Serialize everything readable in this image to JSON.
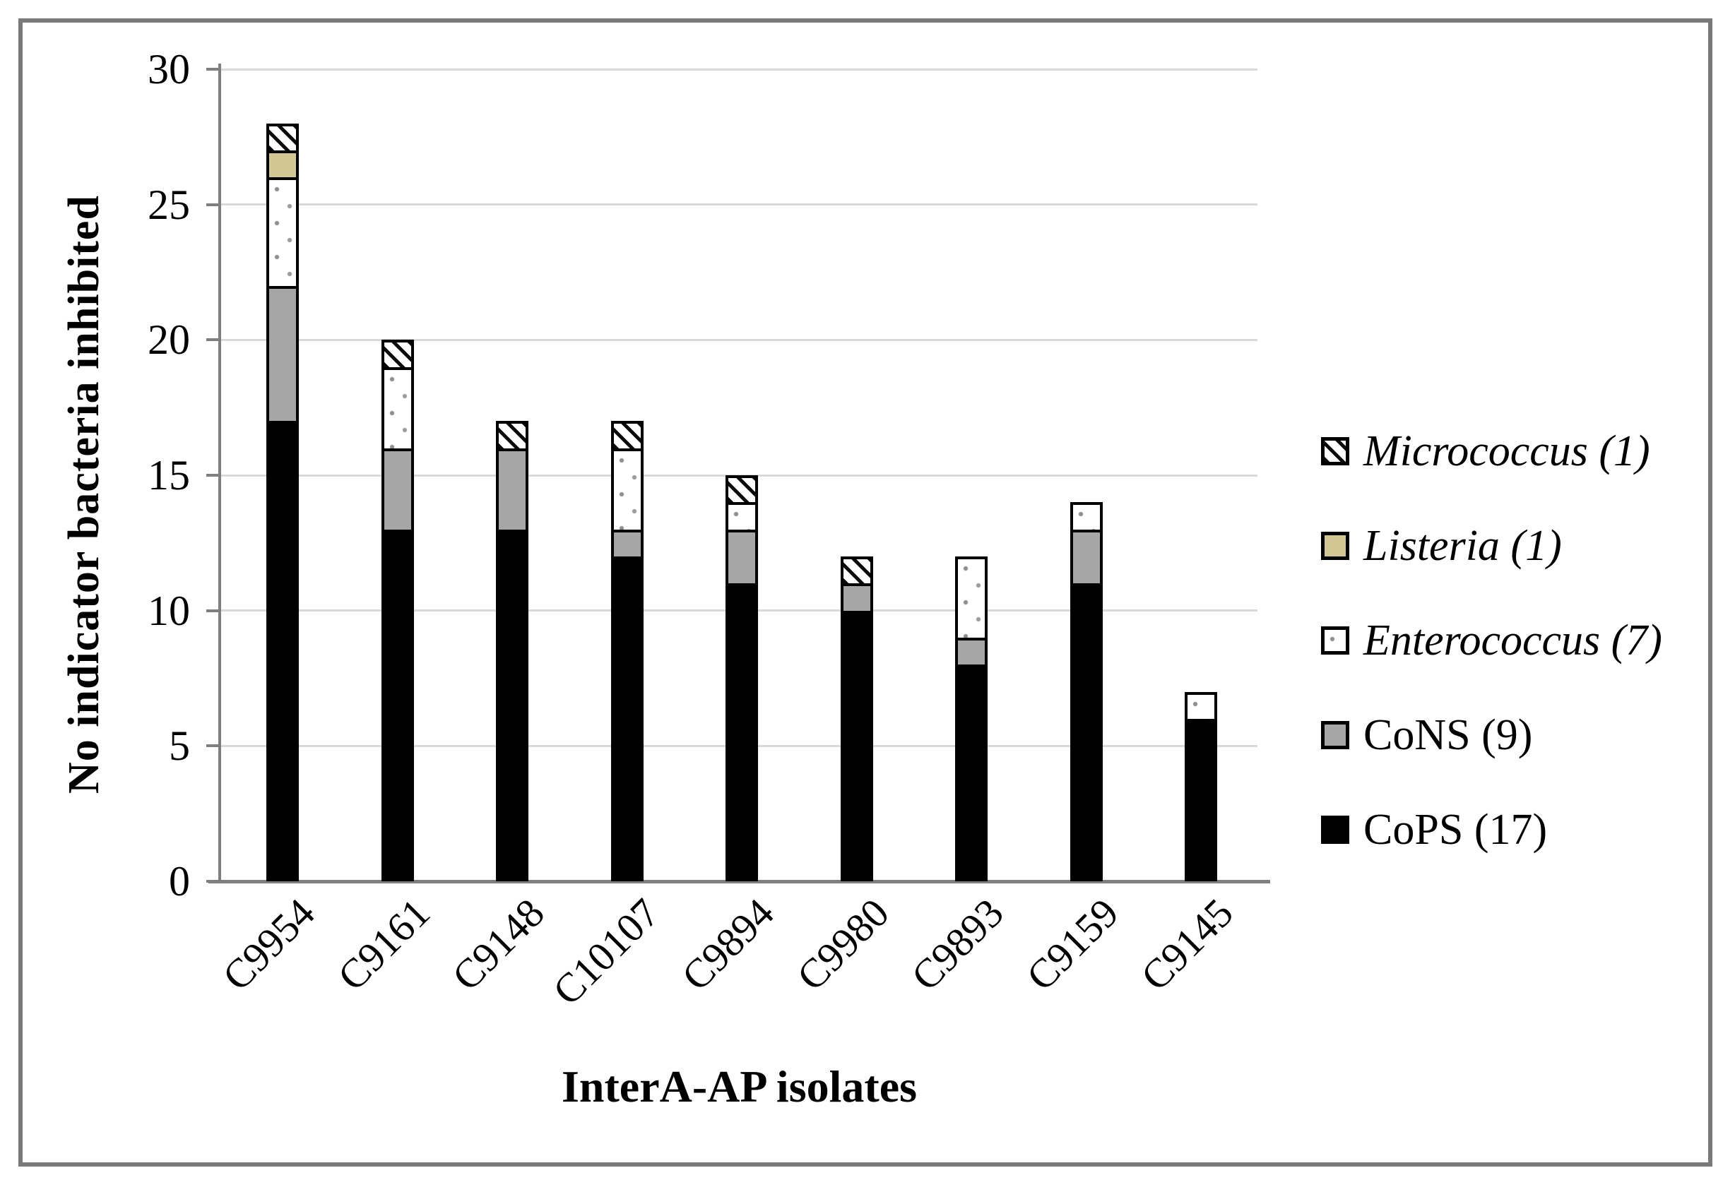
{
  "chart_data": {
    "type": "bar",
    "stacked": true,
    "title": "",
    "xlabel": "InterA-AP isolates",
    "ylabel": "No indicator bacteria inhibited",
    "categories": [
      "C9954",
      "C9161",
      "C9148",
      "C10107",
      "C9894",
      "C9980",
      "C9893",
      "C9159",
      "C9145"
    ],
    "series": [
      {
        "name": "CoPS (17)",
        "key": "cops",
        "pattern": "solid",
        "color": "#000000",
        "italic": false,
        "values": [
          17,
          13,
          13,
          12,
          11,
          10,
          8,
          11,
          6
        ]
      },
      {
        "name": "CoNS (9)",
        "key": "cons",
        "pattern": "solid",
        "color": "#a6a6a6",
        "italic": false,
        "values": [
          5,
          3,
          3,
          1,
          2,
          1,
          1,
          2,
          0
        ]
      },
      {
        "name": "Enterococcus (7)",
        "key": "enterococcus",
        "pattern": "dots",
        "color": "#ffffff",
        "italic": true,
        "values": [
          4,
          3,
          0,
          3,
          1,
          0,
          3,
          1,
          1
        ]
      },
      {
        "name": "Listeria (1)",
        "key": "listeria",
        "pattern": "solid",
        "color": "#d2c794",
        "italic": true,
        "values": [
          1,
          0,
          0,
          0,
          0,
          0,
          0,
          0,
          0
        ]
      },
      {
        "name": "Micrococcus (1)",
        "key": "micrococcus",
        "pattern": "hatch",
        "color": "#ffffff",
        "italic": true,
        "values": [
          1,
          1,
          1,
          1,
          1,
          1,
          0,
          0,
          0
        ]
      }
    ],
    "bar_totals": [
      28,
      20,
      17,
      17,
      15,
      12,
      12,
      14,
      7
    ],
    "ylim": [
      0,
      30
    ],
    "yticks": [
      0,
      5,
      10,
      15,
      20,
      25,
      30
    ],
    "grid": true,
    "legend_position": "right",
    "legend_order_top_to_bottom": [
      "micrococcus",
      "listeria",
      "enterococcus",
      "cons",
      "cops"
    ]
  },
  "colors": {
    "frame_border": "#7a7a7a",
    "axis_line": "#7f7f7f",
    "gridline": "#d9d9d9",
    "bar_border": "#000000",
    "cops_fill": "#000000",
    "cons_fill": "#a6a6a6",
    "listeria_fill": "#d2c794",
    "enterococcus_fill": "#ffffff",
    "text": "#000000"
  }
}
